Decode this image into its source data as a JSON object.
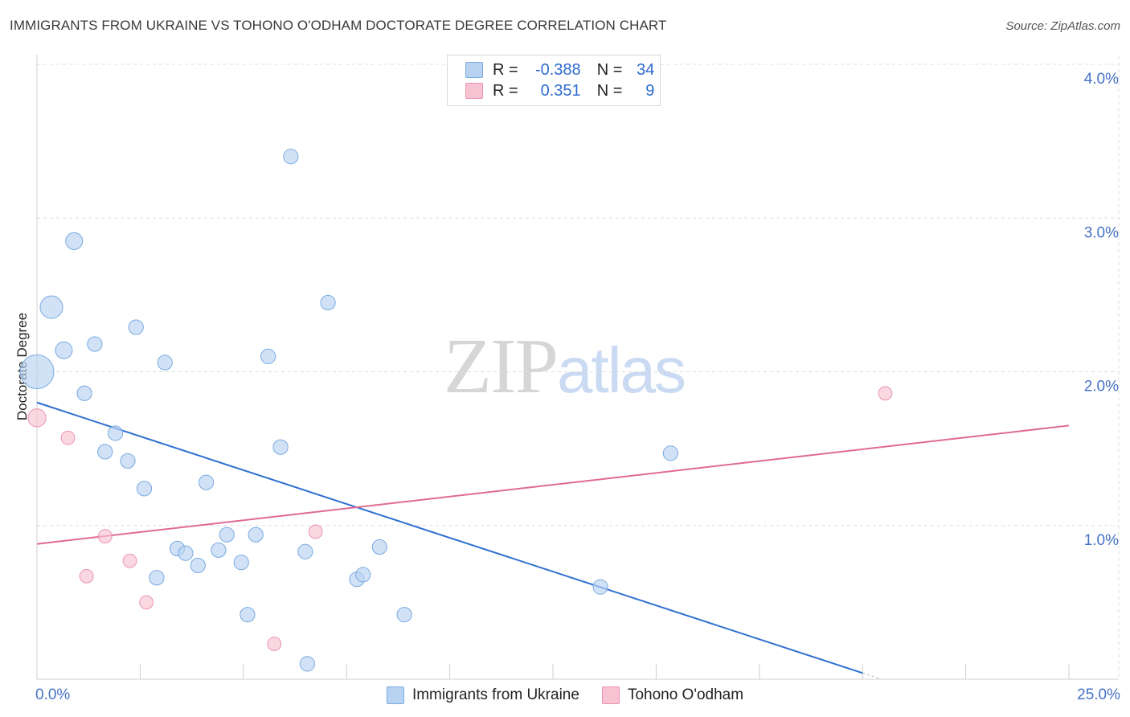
{
  "header": {
    "title": "IMMIGRANTS FROM UKRAINE VS TOHONO O'ODHAM DOCTORATE DEGREE CORRELATION CHART",
    "source": "Source: ZipAtlas.com"
  },
  "watermark": {
    "zip": "ZIP",
    "atlas": "atlas"
  },
  "legend": {
    "rows": [
      {
        "r_label": "R =",
        "r_value": "-0.388",
        "n_label": "N =",
        "n_value": "34"
      },
      {
        "r_label": "R =",
        "r_value": "0.351",
        "n_label": "N =",
        "n_value": "9"
      }
    ]
  },
  "colors": {
    "series1_fill": "#b8d2f2",
    "series1_stroke": "#7aaae0",
    "series1_line": "#2f6fd1",
    "series2_fill": "#f7c3d2",
    "series2_stroke": "#ea93ae",
    "series2_line": "#e06a93",
    "grid": "#dcdcdc",
    "tick_text": "#4472c4"
  },
  "chart_data": {
    "type": "scatter",
    "title": "IMMIGRANTS FROM UKRAINE VS TOHONO O'ODHAM DOCTORATE DEGREE CORRELATION CHART",
    "xlabel": "",
    "ylabel": "Doctorate Degree",
    "xlim": [
      0,
      25
    ],
    "ylim": [
      0,
      4.0
    ],
    "x_tick_labels": [
      "0.0%",
      "25.0%"
    ],
    "y_ticks": [
      1.0,
      2.0,
      3.0,
      4.0
    ],
    "y_tick_labels": [
      "1.0%",
      "2.0%",
      "3.0%",
      "4.0%"
    ],
    "grid": true,
    "legend_position": "bottom",
    "series": [
      {
        "name": "Immigrants from Ukraine",
        "r": -0.388,
        "n": 34,
        "points": [
          {
            "x": 0.0,
            "y": 2.0,
            "s": 3
          },
          {
            "x": 0.35,
            "y": 2.42,
            "s": 2
          },
          {
            "x": 0.65,
            "y": 2.14,
            "s": 1.5
          },
          {
            "x": 0.9,
            "y": 2.85,
            "s": 1.5
          },
          {
            "x": 1.15,
            "y": 1.86,
            "s": 1.3
          },
          {
            "x": 1.4,
            "y": 2.18,
            "s": 1.3
          },
          {
            "x": 1.65,
            "y": 1.48,
            "s": 1.3
          },
          {
            "x": 1.9,
            "y": 1.6,
            "s": 1.3
          },
          {
            "x": 2.2,
            "y": 1.42,
            "s": 1.3
          },
          {
            "x": 2.4,
            "y": 2.29,
            "s": 1.3
          },
          {
            "x": 2.6,
            "y": 1.24,
            "s": 1.3
          },
          {
            "x": 2.9,
            "y": 0.66,
            "s": 1.3
          },
          {
            "x": 3.1,
            "y": 2.06,
            "s": 1.3
          },
          {
            "x": 3.4,
            "y": 0.85,
            "s": 1.3
          },
          {
            "x": 3.6,
            "y": 0.82,
            "s": 1.3
          },
          {
            "x": 3.9,
            "y": 0.74,
            "s": 1.3
          },
          {
            "x": 4.1,
            "y": 1.28,
            "s": 1.3
          },
          {
            "x": 4.4,
            "y": 0.84,
            "s": 1.3
          },
          {
            "x": 4.6,
            "y": 0.94,
            "s": 1.3
          },
          {
            "x": 4.95,
            "y": 0.76,
            "s": 1.3
          },
          {
            "x": 5.1,
            "y": 0.42,
            "s": 1.3
          },
          {
            "x": 5.3,
            "y": 0.94,
            "s": 1.3
          },
          {
            "x": 5.6,
            "y": 2.1,
            "s": 1.3
          },
          {
            "x": 5.9,
            "y": 1.51,
            "s": 1.3
          },
          {
            "x": 6.15,
            "y": 3.4,
            "s": 1.3
          },
          {
            "x": 6.5,
            "y": 0.83,
            "s": 1.3
          },
          {
            "x": 6.55,
            "y": 0.1,
            "s": 1.3
          },
          {
            "x": 7.05,
            "y": 2.45,
            "s": 1.3
          },
          {
            "x": 7.75,
            "y": 0.65,
            "s": 1.3
          },
          {
            "x": 7.9,
            "y": 0.68,
            "s": 1.3
          },
          {
            "x": 8.3,
            "y": 0.86,
            "s": 1.3
          },
          {
            "x": 8.9,
            "y": 0.42,
            "s": 1.3
          },
          {
            "x": 13.65,
            "y": 0.6,
            "s": 1.3
          },
          {
            "x": 15.35,
            "y": 1.47,
            "s": 1.3
          }
        ],
        "trend": {
          "x": [
            0,
            20.0
          ],
          "y": [
            1.8,
            0.04
          ]
        }
      },
      {
        "name": "Tohono O'odham",
        "r": 0.351,
        "n": 9,
        "points": [
          {
            "x": 0.0,
            "y": 1.7,
            "s": 1.6
          },
          {
            "x": 0.75,
            "y": 1.57,
            "s": 1.2
          },
          {
            "x": 1.2,
            "y": 0.67,
            "s": 1.2
          },
          {
            "x": 1.65,
            "y": 0.93,
            "s": 1.2
          },
          {
            "x": 2.25,
            "y": 0.77,
            "s": 1.2
          },
          {
            "x": 2.65,
            "y": 0.5,
            "s": 1.2
          },
          {
            "x": 5.75,
            "y": 0.23,
            "s": 1.2
          },
          {
            "x": 6.75,
            "y": 0.96,
            "s": 1.2
          },
          {
            "x": 20.55,
            "y": 1.86,
            "s": 1.2
          }
        ],
        "trend": {
          "x": [
            0,
            25
          ],
          "y": [
            0.88,
            1.65
          ]
        }
      }
    ]
  }
}
